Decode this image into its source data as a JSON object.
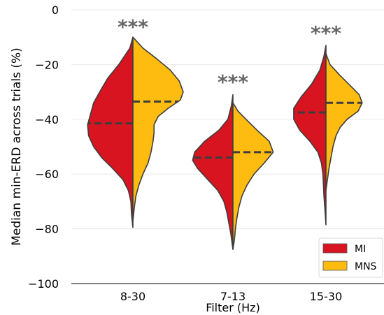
{
  "chart_data": {
    "type": "violin",
    "title": "",
    "xlabel": "Filter (Hz)",
    "ylabel": "Median min-ERD across trials (%)",
    "ylim": [
      -100,
      0
    ],
    "yticks": [
      0,
      -20,
      -40,
      -60,
      -80,
      -100
    ],
    "ytick_labels": [
      "0",
      "−20",
      "−40",
      "−60",
      "−80",
      "−100"
    ],
    "categories": [
      "8-30",
      "7-13",
      "15-30"
    ],
    "grid": "horizontal",
    "legend_position": "bottom-right",
    "series": [
      {
        "name": "MI",
        "color": "#d7141f",
        "side": "left",
        "medians": [
          -41.5,
          -54,
          -37.5
        ]
      },
      {
        "name": "MNS",
        "color": "#fdbc0f",
        "side": "right",
        "medians": [
          -33.5,
          -52,
          -34
        ]
      }
    ],
    "significance": [
      "***",
      "***",
      "***"
    ],
    "violins": [
      {
        "category": "8-30",
        "left": {
          "y": [
            -10,
            -14,
            -20,
            -25,
            -30,
            -34,
            -38,
            -42,
            -46,
            -50,
            -54,
            -58,
            -62,
            -66,
            -70,
            -74,
            -76,
            -79.5
          ],
          "w": [
            0,
            0.06,
            0.28,
            0.5,
            0.66,
            0.78,
            0.84,
            0.9,
            0.88,
            0.78,
            0.62,
            0.4,
            0.2,
            0.09,
            0.04,
            0.03,
            0.02,
            0
          ]
        },
        "right": {
          "y": [
            -10,
            -14,
            -18,
            -22,
            -26,
            -30,
            -33,
            -36,
            -39,
            -42,
            -45,
            -48,
            -52,
            -56,
            -60,
            -64,
            -68,
            -72,
            -77
          ],
          "w": [
            0,
            0.2,
            0.48,
            0.74,
            0.92,
            1.0,
            0.94,
            0.7,
            0.5,
            0.42,
            0.42,
            0.4,
            0.36,
            0.3,
            0.2,
            0.12,
            0.06,
            0.03,
            0
          ]
        }
      },
      {
        "category": "7-13",
        "left": {
          "y": [
            -31,
            -35,
            -40,
            -44,
            -48,
            -52,
            -55,
            -58,
            -62,
            -66,
            -70,
            -74,
            -78,
            -82,
            -87.5
          ],
          "w": [
            0,
            0.03,
            0.1,
            0.28,
            0.56,
            0.76,
            0.8,
            0.7,
            0.5,
            0.3,
            0.18,
            0.12,
            0.08,
            0.04,
            0
          ]
        },
        "right": {
          "y": [
            -34,
            -37,
            -40,
            -44,
            -48,
            -52,
            -56,
            -60,
            -64,
            -68,
            -72,
            -76,
            -80,
            -84,
            -87.5
          ],
          "w": [
            0,
            0.1,
            0.26,
            0.48,
            0.72,
            0.8,
            0.62,
            0.42,
            0.28,
            0.18,
            0.12,
            0.08,
            0.05,
            0.03,
            0
          ]
        }
      },
      {
        "category": "15-30",
        "left": {
          "y": [
            -13,
            -17,
            -22,
            -27,
            -32,
            -36,
            -40,
            -44,
            -48,
            -52,
            -56,
            -60,
            -64,
            -68,
            -73,
            -78.5
          ],
          "w": [
            0,
            0.04,
            0.12,
            0.28,
            0.5,
            0.64,
            0.64,
            0.52,
            0.32,
            0.16,
            0.09,
            0.06,
            0.05,
            0.04,
            0.02,
            0
          ]
        },
        "right": {
          "y": [
            -16,
            -20,
            -24,
            -28,
            -31,
            -34,
            -37,
            -40,
            -43,
            -46,
            -50,
            -54,
            -58,
            -62,
            -66
          ],
          "w": [
            0,
            0.08,
            0.28,
            0.5,
            0.66,
            0.72,
            0.64,
            0.42,
            0.28,
            0.2,
            0.14,
            0.1,
            0.06,
            0.03,
            0
          ]
        }
      }
    ]
  }
}
